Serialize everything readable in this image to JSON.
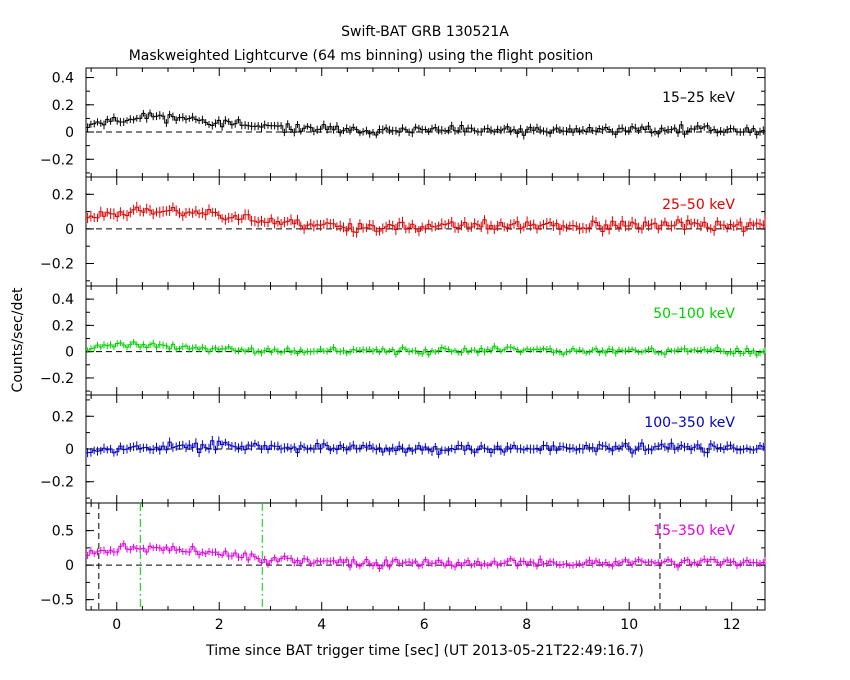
{
  "chart_data": {
    "type": "line",
    "title": "Swift-BAT GRB 130521A",
    "subtitle": "Maskweighted Lightcurve (64 ms binning) using the flight position",
    "xlabel": "Time since BAT trigger time [sec] (UT 2013-05-21T22:49:16.7)",
    "ylabel": "Counts/sec/det",
    "xlim": [
      -0.6,
      12.65
    ],
    "x_ticks": [
      0,
      2,
      4,
      6,
      8,
      10,
      12
    ],
    "x_tick_labels": [
      "0",
      "2",
      "4",
      "6",
      "8",
      "10",
      "12"
    ],
    "bin_width_sec": 0.064,
    "panels": [
      {
        "name": "15-25 keV",
        "label": "15–25 keV",
        "color": "#000000",
        "ylim": [
          -0.33,
          0.47
        ],
        "y_ticks": [
          -0.2,
          0,
          0.2,
          0.4
        ],
        "y_tick_labels": [
          "−0.2",
          "0",
          "0.2",
          "0.4"
        ],
        "profile": [
          [
            -0.6,
            0.06
          ],
          [
            0.3,
            0.1
          ],
          [
            0.8,
            0.12
          ],
          [
            2.0,
            0.07
          ],
          [
            3.0,
            0.03
          ],
          [
            5.0,
            0.01
          ],
          [
            8.0,
            0.01
          ],
          [
            10.3,
            0.02
          ],
          [
            12.65,
            0.01
          ]
        ],
        "noise": 0.022,
        "err": 0.028,
        "seed": 11
      },
      {
        "name": "25-50 keV",
        "label": "25–50 keV",
        "color": "#e00000",
        "ylim": [
          -0.33,
          0.3
        ],
        "y_ticks": [
          -0.2,
          0,
          0.2
        ],
        "y_tick_labels": [
          "−0.2",
          "0",
          "0.2"
        ],
        "profile": [
          [
            -0.6,
            0.07
          ],
          [
            0.3,
            0.11
          ],
          [
            1.0,
            0.1
          ],
          [
            2.0,
            0.09
          ],
          [
            3.0,
            0.04
          ],
          [
            5.0,
            0.01
          ],
          [
            8.0,
            0.02
          ],
          [
            10.0,
            0.02
          ],
          [
            12.65,
            0.02
          ]
        ],
        "noise": 0.022,
        "err": 0.028,
        "seed": 23
      },
      {
        "name": "50-100 keV",
        "label": "50–100 keV",
        "color": "#00d000",
        "ylim": [
          -0.33,
          0.5
        ],
        "y_ticks": [
          -0.2,
          0,
          0.2,
          0.4
        ],
        "y_tick_labels": [
          "−0.2",
          "0",
          "0.2",
          "0.4"
        ],
        "profile": [
          [
            -0.6,
            0.03
          ],
          [
            0.0,
            0.06
          ],
          [
            1.0,
            0.04
          ],
          [
            2.0,
            0.02
          ],
          [
            3.0,
            0.0
          ],
          [
            6.0,
            0.01
          ],
          [
            12.65,
            0.0
          ]
        ],
        "noise": 0.018,
        "err": 0.024,
        "seed": 37
      },
      {
        "name": "100-350 keV",
        "label": "100–350 keV",
        "color": "#0000c8",
        "ylim": [
          -0.33,
          0.33
        ],
        "y_ticks": [
          -0.2,
          0,
          0.2
        ],
        "y_tick_labels": [
          "−0.2",
          "0",
          "0.2"
        ],
        "profile": [
          [
            -0.6,
            0.0
          ],
          [
            2.0,
            0.02
          ],
          [
            5.0,
            0.0
          ],
          [
            10.0,
            0.01
          ],
          [
            12.65,
            0.01
          ]
        ],
        "noise": 0.02,
        "err": 0.026,
        "seed": 53
      },
      {
        "name": "15-350 keV",
        "label": "15–350 keV",
        "color": "#e000e0",
        "ylim": [
          -0.65,
          0.9
        ],
        "y_ticks": [
          -0.5,
          0,
          0.5
        ],
        "y_tick_labels": [
          "−0.5",
          "0",
          "0.5"
        ],
        "profile": [
          [
            -0.6,
            0.15
          ],
          [
            0.2,
            0.27
          ],
          [
            0.8,
            0.24
          ],
          [
            2.0,
            0.17
          ],
          [
            3.0,
            0.08
          ],
          [
            5.0,
            0.02
          ],
          [
            8.0,
            0.03
          ],
          [
            10.5,
            0.04
          ],
          [
            12.65,
            0.03
          ]
        ],
        "noise": 0.04,
        "err": 0.05,
        "seed": 71,
        "markers": [
          {
            "x": -0.35,
            "style": "black-dashed"
          },
          {
            "x": 0.46,
            "style": "green-dashdot"
          },
          {
            "x": 2.84,
            "style": "green-dashdot"
          },
          {
            "x": 10.6,
            "style": "black-dashed"
          }
        ]
      }
    ]
  }
}
